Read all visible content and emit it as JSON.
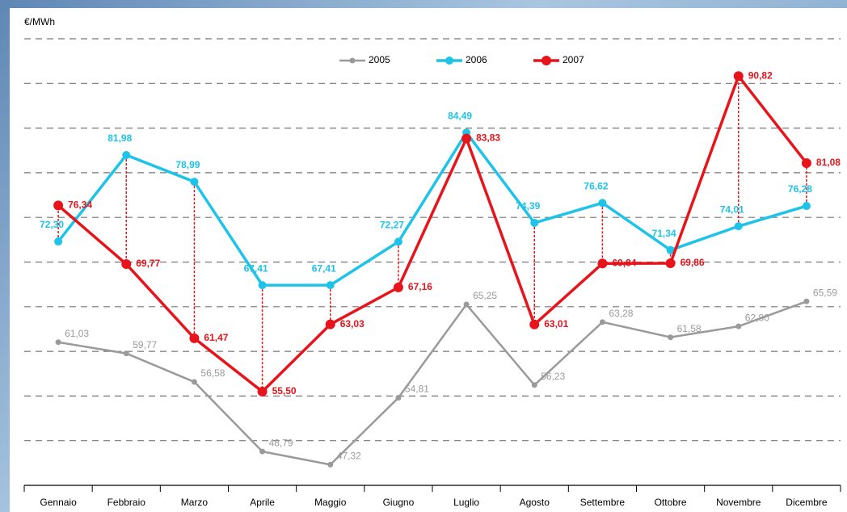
{
  "chart_data": {
    "type": "line",
    "y_label": "€/MWh",
    "categories": [
      "Gennaio",
      "Febbraio",
      "Marzo",
      "Aprile",
      "Maggio",
      "Giugno",
      "Luglio",
      "Agosto",
      "Settembre",
      "Ottobre",
      "Novembre",
      "Dicembre"
    ],
    "ylim": [
      45,
      95
    ],
    "yticks": [
      45,
      50,
      55,
      60,
      65,
      70,
      75,
      80,
      85,
      90,
      95
    ],
    "grid": true,
    "legend": "top",
    "series": [
      {
        "name": "2005",
        "color": "#9a9a9a",
        "values": [
          61.03,
          59.77,
          56.58,
          48.79,
          47.32,
          54.81,
          65.25,
          56.23,
          63.28,
          61.58,
          62.8,
          65.59
        ],
        "value_labels": [
          "61,03",
          "59,77",
          "56,58",
          "48,79",
          "47,32",
          "54,81",
          "65,25",
          "56,23",
          "63,28",
          "61,58",
          "62,80",
          "65,59"
        ]
      },
      {
        "name": "2006",
        "color": "#1ec3ea",
        "values": [
          72.3,
          81.98,
          78.99,
          67.41,
          67.41,
          72.27,
          84.49,
          74.39,
          76.62,
          71.34,
          74.01,
          76.28
        ],
        "value_labels": [
          "72,30",
          "81,98",
          "78,99",
          "67,41",
          "67,41",
          "72,27",
          "84,49",
          "74,39",
          "76,62",
          "71,34",
          "74,01",
          "76,28"
        ]
      },
      {
        "name": "2007",
        "color": "#e8141b",
        "values": [
          76.34,
          69.77,
          61.47,
          55.5,
          63.03,
          67.16,
          83.83,
          63.01,
          69.84,
          69.86,
          90.82,
          81.08
        ],
        "value_labels": [
          "76,34",
          "69,77",
          "61,47",
          "55,50",
          "63,03",
          "67,16",
          "83,83",
          "63,01",
          "69,84",
          "69,86",
          "90,82",
          "81,08"
        ]
      }
    ]
  }
}
